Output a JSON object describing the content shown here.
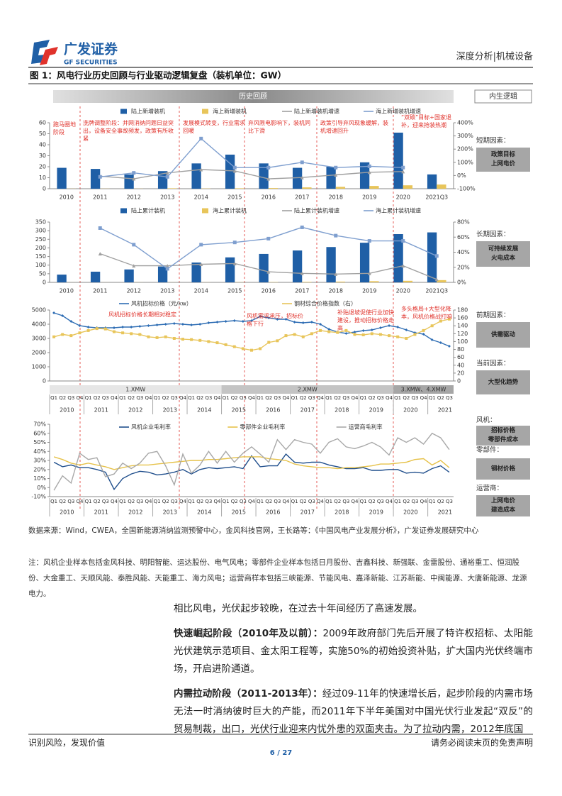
{
  "header": {
    "logo_cn": "广发证券",
    "logo_en": "GF SECURITIES",
    "section": "深度分析|机械设备"
  },
  "figure": {
    "title": "图 1：风电行业历史回顾与行业驱动逻辑复盘（装机单位：GW）",
    "banner": "历史回顾",
    "side_title": "内生逻辑",
    "side_factors": [
      {
        "label": "短期因素：",
        "box": [
          "政策目标",
          "上网电价"
        ]
      },
      {
        "label": "长期因素：",
        "box": [
          "可持续发展",
          "火电成本"
        ]
      },
      {
        "label": "前期因素：",
        "box": [
          "供需驱动"
        ]
      },
      {
        "label": "当前因素：",
        "box": [
          "大型化趋势"
        ]
      },
      {
        "label": "风机：",
        "box": [
          "招标价格",
          "零部件成本"
        ]
      },
      {
        "label": "零部件：",
        "box": [
          "钢材价格"
        ]
      },
      {
        "label": "运营商：",
        "box": [
          "上网电价",
          "建造成本"
        ]
      }
    ],
    "charts": [
      {
        "type": "bar",
        "categories": [
          "2010",
          "2011",
          "2012",
          "2013",
          "2014",
          "2015",
          "2016",
          "2017",
          "2018",
          "2019",
          "2020",
          "2021Q3"
        ],
        "ylim": [
          0,
          60
        ],
        "yticks": [
          0,
          10,
          20,
          30,
          40,
          50,
          60
        ],
        "y2lim": [
          -100,
          400
        ],
        "y2ticks": [
          {
            "value": -100,
            "label": "-100%"
          },
          {
            "value": 0,
            "label": "0%"
          },
          {
            "value": 100,
            "label": "100%"
          },
          {
            "value": 200,
            "label": "200%"
          },
          {
            "value": 300,
            "label": "300%"
          },
          {
            "value": 400,
            "label": "400%"
          }
        ],
        "series": [
          {
            "name": "陆上新增装机",
            "type": "bar",
            "color": "#1f5fa6",
            "values": [
              19,
              18,
              13,
              16,
              23,
              31,
              23,
              19,
              20,
              24,
              51,
              13
            ]
          },
          {
            "name": "海上新增装机",
            "type": "bar",
            "color": "#e8c55a",
            "values": [
              0.1,
              0.1,
              0.1,
              0.4,
              0.2,
              0.4,
              0.6,
              1.2,
              1.7,
              2.5,
              3.1,
              3.8
            ]
          },
          {
            "name": "陆上新增装机增速",
            "type": "line",
            "axis": "y2",
            "marker": "triangle",
            "color": "#a0a0a0",
            "values": [
              null,
              -5,
              -25,
              20,
              45,
              35,
              -25,
              -15,
              5,
              25,
              30,
              null
            ]
          },
          {
            "name": "海上新增装机增速",
            "type": "line",
            "axis": "y2",
            "marker": "square",
            "color": "#7f9fcf",
            "values": [
              null,
              -10,
              20,
              -10,
              280,
              60,
              60,
              100,
              60,
              70,
              60,
              null
            ]
          }
        ],
        "annotations": [
          "跑马圈地阶段",
          "洗牌调整阶段：并网消纳问题日益突出，设备安全事故频发，政策有所收紧",
          "发展模式转变，行业需求回暖",
          "弃风限电影响下，装机同比下滑",
          "政策引导弃风现象缓解，装机增速回升",
          "“双碳”目标+国家退补，迎来抢装热潮"
        ]
      },
      {
        "type": "bar",
        "categories": [
          "2010",
          "2011",
          "2012",
          "2013",
          "2014",
          "2015",
          "2016",
          "2017",
          "2018",
          "2019",
          "2020",
          "2021Q3"
        ],
        "ylim": [
          0,
          350
        ],
        "yticks": [
          0,
          50,
          100,
          150,
          200,
          250,
          300,
          350
        ],
        "y2lim": [
          0,
          80
        ],
        "y2ticks": [
          {
            "value": 0,
            "label": "0%"
          },
          {
            "value": 20,
            "label": "20%"
          },
          {
            "value": 40,
            "label": "40%"
          },
          {
            "value": 60,
            "label": "60%"
          },
          {
            "value": 80,
            "label": "80%"
          }
        ],
        "series": [
          {
            "name": "陆上累计装机",
            "type": "bar",
            "color": "#1f5fa6",
            "values": [
              45,
              62,
              75,
              92,
              115,
              145,
              165,
              185,
              205,
              230,
              280,
              290
            ]
          },
          {
            "name": "海上累计装机",
            "type": "bar",
            "color": "#e8c55a",
            "values": [
              0.2,
              0.3,
              0.4,
              0.4,
              0.6,
              1,
              1.6,
              2.8,
              4.4,
              6.8,
              9,
              13
            ]
          },
          {
            "name": "陆上累计装机增速",
            "type": "line",
            "axis": "y2",
            "marker": "triangle",
            "color": "#a0a0a0",
            "values": [
              null,
              38,
              22,
              22,
              24,
              25,
              14,
              12,
              11,
              12,
              22,
              4
            ]
          },
          {
            "name": "海上累计装机增速",
            "type": "line",
            "axis": "y2",
            "marker": "square",
            "color": "#7f9fcf",
            "values": [
              null,
              72,
              50,
              18,
              50,
              53,
              58,
              73,
              62,
              55,
              55,
              35
            ]
          }
        ]
      },
      {
        "type": "line",
        "categories": [
          "Q1",
          "Q2",
          "Q3",
          "Q4",
          "Q1",
          "Q2",
          "Q3",
          "Q4",
          "Q1",
          "Q2",
          "Q3",
          "Q4",
          "Q1",
          "Q2",
          "Q3",
          "Q4",
          "Q1",
          "Q2",
          "Q3",
          "Q4",
          "Q1",
          "Q2",
          "Q3",
          "Q4",
          "Q1",
          "Q2",
          "Q3",
          "Q4",
          "Q1",
          "Q2",
          "Q3",
          "Q4",
          "Q1",
          "Q2",
          "Q3",
          "Q4",
          "Q1",
          "Q2",
          "Q3",
          "Q4",
          "Q1",
          "Q2",
          "Q3",
          "Q4",
          "Q1",
          "Q2",
          "Q3"
        ],
        "years": [
          "2010",
          "2011",
          "2012",
          "2013",
          "2014",
          "2015",
          "2016",
          "2017",
          "2018",
          "2019",
          "2020",
          "2021"
        ],
        "bands": [
          "1.XMW",
          "2.XMW",
          "3.XMW、4.XMW"
        ],
        "ylim": [
          0,
          5000
        ],
        "yticks": [
          0,
          1000,
          2000,
          3000,
          4000,
          5000
        ],
        "y2lim": [
          0,
          180
        ],
        "y2ticks": [
          0,
          20,
          40,
          60,
          80,
          100,
          120,
          140,
          160,
          180
        ],
        "series": [
          {
            "name": "风机招标价格（元/kw）",
            "type": "line",
            "marker": "diamond",
            "color": "#2e6db4",
            "values": [
              4800,
              4600,
              4200,
              3900,
              3800,
              3750,
              3750,
              3750,
              3800,
              3800,
              3850,
              3900,
              3950,
              4000,
              4050,
              4000,
              3950,
              4000,
              4100,
              4150,
              4200,
              4250,
              4200,
              4250,
              4550,
              4450,
              4350,
              4350,
              4150,
              4100,
              4150,
              4000,
              3650,
              3450,
              3350,
              3450,
              3550,
              3600,
              3750,
              3900,
              3800,
              3600,
              3400,
              3300,
              2900,
              2700,
              2450
            ]
          },
          {
            "name": "钢材综合价格指数（右）",
            "type": "line",
            "axis": "y2",
            "marker": "square",
            "color": "#e8c55a",
            "values": [
              112,
              118,
              115,
              122,
              128,
              133,
              132,
              125,
              122,
              120,
              118,
              112,
              110,
              112,
              108,
              106,
              105,
              103,
              100,
              97,
              92,
              87,
              82,
              78,
              82,
              98,
              102,
              115,
              118,
              112,
              120,
              128,
              125,
              123,
              128,
              118,
              117,
              120,
              118,
              115,
              112,
              108,
              118,
              128,
              140,
              152,
              157
            ]
          }
        ],
        "annotations": [
          "风机招标价格长期相对稳定",
          "风机需求承压，招标价格下行",
          "补贴退坡促使行业加快建设，推动招标价格走高",
          "多头格局+大型化降本，风机价格战打响"
        ]
      },
      {
        "type": "line",
        "categories": [
          "Q1",
          "Q2",
          "Q3",
          "Q4",
          "Q1",
          "Q2",
          "Q3",
          "Q4",
          "Q1",
          "Q2",
          "Q3",
          "Q4",
          "Q1",
          "Q2",
          "Q3",
          "Q4",
          "Q1",
          "Q2",
          "Q3",
          "Q4",
          "Q1",
          "Q2",
          "Q3",
          "Q4",
          "Q1",
          "Q2",
          "Q3",
          "Q4",
          "Q1",
          "Q2",
          "Q3",
          "Q4",
          "Q1",
          "Q2",
          "Q3",
          "Q4",
          "Q1",
          "Q2",
          "Q3",
          "Q4",
          "Q1",
          "Q2",
          "Q3",
          "Q4",
          "Q1",
          "Q2",
          "Q3"
        ],
        "years": [
          "2010",
          "2011",
          "2012",
          "2013",
          "2014",
          "2015",
          "2016",
          "2017",
          "2018",
          "2019",
          "2020",
          "2021"
        ],
        "ylim": [
          -10,
          70
        ],
        "yticks": [
          {
            "value": -10,
            "label": "-10%"
          },
          {
            "value": 0,
            "label": "0%"
          },
          {
            "value": 10,
            "label": "10%"
          },
          {
            "value": 20,
            "label": "20%"
          },
          {
            "value": 30,
            "label": "30%"
          },
          {
            "value": 40,
            "label": "40%"
          },
          {
            "value": 50,
            "label": "50%"
          },
          {
            "value": 60,
            "label": "60%"
          },
          {
            "value": 70,
            "label": "70%"
          }
        ],
        "series": [
          {
            "name": "风机企业毛利率",
            "type": "line",
            "color": "#1f4e8c",
            "values": [
              28,
              23,
              25,
              22,
              22,
              20,
              17,
              -2,
              10,
              15,
              18,
              17,
              14,
              15,
              17,
              20,
              15,
              20,
              22,
              21,
              22,
              23,
              21,
              35,
              23,
              24,
              24,
              37,
              28,
              27,
              28,
              28,
              25,
              23,
              21,
              21,
              22,
              19,
              19,
              20,
              20,
              16,
              17,
              16,
              21,
              24,
              17
            ]
          },
          {
            "name": "零部件企业毛利率",
            "type": "line",
            "color": "#e6c24a",
            "values": [
              34,
              31,
              27,
              25,
              27,
              25,
              23,
              20,
              22,
              24,
              25,
              25,
              26,
              27,
              28,
              29,
              30,
              30,
              31,
              31,
              32,
              33,
              34,
              34,
              34,
              32,
              31,
              30,
              26,
              24,
              23,
              22,
              22,
              21,
              22,
              22,
              23,
              24,
              26,
              26,
              27,
              28,
              31,
              32,
              25,
              30,
              22
            ]
          },
          {
            "name": "运营商毛利率",
            "type": "line",
            "color": "#a8a8a8",
            "values": [
              -3,
              13,
              5,
              38,
              31,
              33,
              12,
              15,
              27,
              21,
              27,
              38,
              40,
              24,
              3,
              37,
              16,
              25,
              40,
              27,
              40,
              28,
              38,
              45,
              37,
              28,
              53,
              42,
              53,
              50,
              48,
              38,
              50,
              54,
              45,
              43,
              46,
              50,
              45,
              36,
              55,
              50,
              55,
              48,
              60,
              55,
              42
            ]
          }
        ]
      }
    ]
  },
  "source": "数据来源：Wind，CWEA，全国新能源消纳监测预警中心，金风科技官网，王长路等：《中国风电产业发展分析》，广发证券发展研究中心",
  "note": "注：风机企业样本包括金风科技、明阳智能、运达股份、电气风电；零部件企业样本包括日月股份、吉鑫科技、新强联、金雷股份、通裕重工、恒润股份、大金重工、天顺风能、泰胜风能、天能重工、海力风电；运营商样本包括三峡能源、节能风电、嘉泽新能、江苏新能、中闽能源、大唐新能源、龙源电力。",
  "body": {
    "lead": "相比风电，光伏起步较晚，在过去十年间经历了高速发展。",
    "paragraphs": [
      {
        "heading": "快速崛起阶段（2010年及以前）：",
        "text": "2009年政府部门先后开展了特许权招标、太阳能光伏建筑示范项目、金太阳工程等，实施50%的初始投资补贴，扩大国内光伏终端市场，开启进阶通道。"
      },
      {
        "heading": "内需拉动阶段（2011-2013年）：",
        "text": "经过09-11年的快速增长后，起步阶段的内需市场无法一时消纳彼时巨大的产能，而2011年下半年美国对中国光伏行业发起“双反”的贸易制裁，出口，光伏行业迎来内忧外患的双面夹击。为了拉动内需，2012年底国"
      }
    ]
  },
  "footer": {
    "left": "识别风险，发现价值",
    "page": "6 / 27",
    "right": "请务必阅读末页的免责声明"
  }
}
